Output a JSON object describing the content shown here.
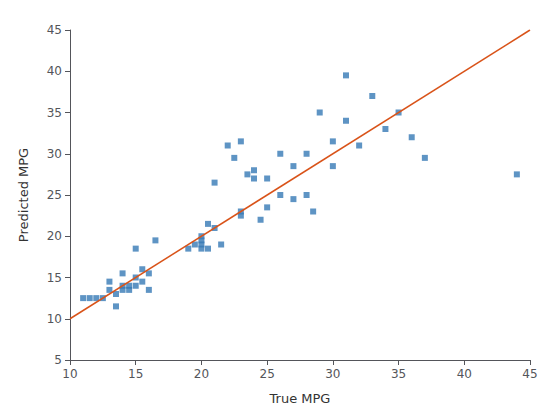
{
  "chart_data": {
    "type": "scatter",
    "xlabel": "True MPG",
    "ylabel": "Predicted MPG",
    "xlim": [
      10,
      45
    ],
    "ylim": [
      5,
      45
    ],
    "xticks": [
      10,
      15,
      20,
      25,
      30,
      35,
      40,
      45
    ],
    "yticks": [
      5,
      10,
      15,
      20,
      25,
      30,
      35,
      40,
      45
    ],
    "grid": false,
    "series": [
      {
        "type": "scatter",
        "color": "#3679b5",
        "marker": "square",
        "x": [
          11,
          11.5,
          12,
          12.5,
          13,
          13,
          13.5,
          13.5,
          14,
          14,
          14,
          14.5,
          14.5,
          15,
          15,
          15,
          15.5,
          15.5,
          16,
          16,
          16.5,
          19,
          19.5,
          20,
          20,
          20,
          20,
          20.5,
          20.5,
          21,
          21,
          21.5,
          22,
          22.5,
          23,
          23,
          23,
          23.5,
          24,
          24,
          24.5,
          25,
          25,
          26,
          26,
          27,
          27,
          28,
          28,
          28.5,
          29,
          30,
          30,
          31,
          31,
          32,
          33,
          34,
          35,
          36,
          37,
          44
        ],
        "values": [
          12.5,
          12.5,
          12.5,
          12.5,
          13.5,
          14.5,
          13,
          11.5,
          13.5,
          14,
          15.5,
          13.5,
          14,
          15,
          14,
          18.5,
          14.5,
          16,
          13.5,
          15.5,
          19.5,
          18.5,
          19,
          19.5,
          18.5,
          20,
          19,
          18.5,
          21.5,
          26.5,
          21,
          19,
          31,
          29.5,
          23,
          22.5,
          31.5,
          27.5,
          27,
          28,
          22,
          23.5,
          27,
          25,
          30,
          28.5,
          24.5,
          25,
          30,
          23,
          35,
          31.5,
          28.5,
          34,
          39.5,
          31,
          37,
          33,
          35,
          32,
          29.5,
          27.5
        ]
      },
      {
        "type": "line",
        "color": "#d95319",
        "line_style": "solid",
        "x": [
          10,
          45
        ],
        "values": [
          10,
          45
        ]
      }
    ]
  }
}
